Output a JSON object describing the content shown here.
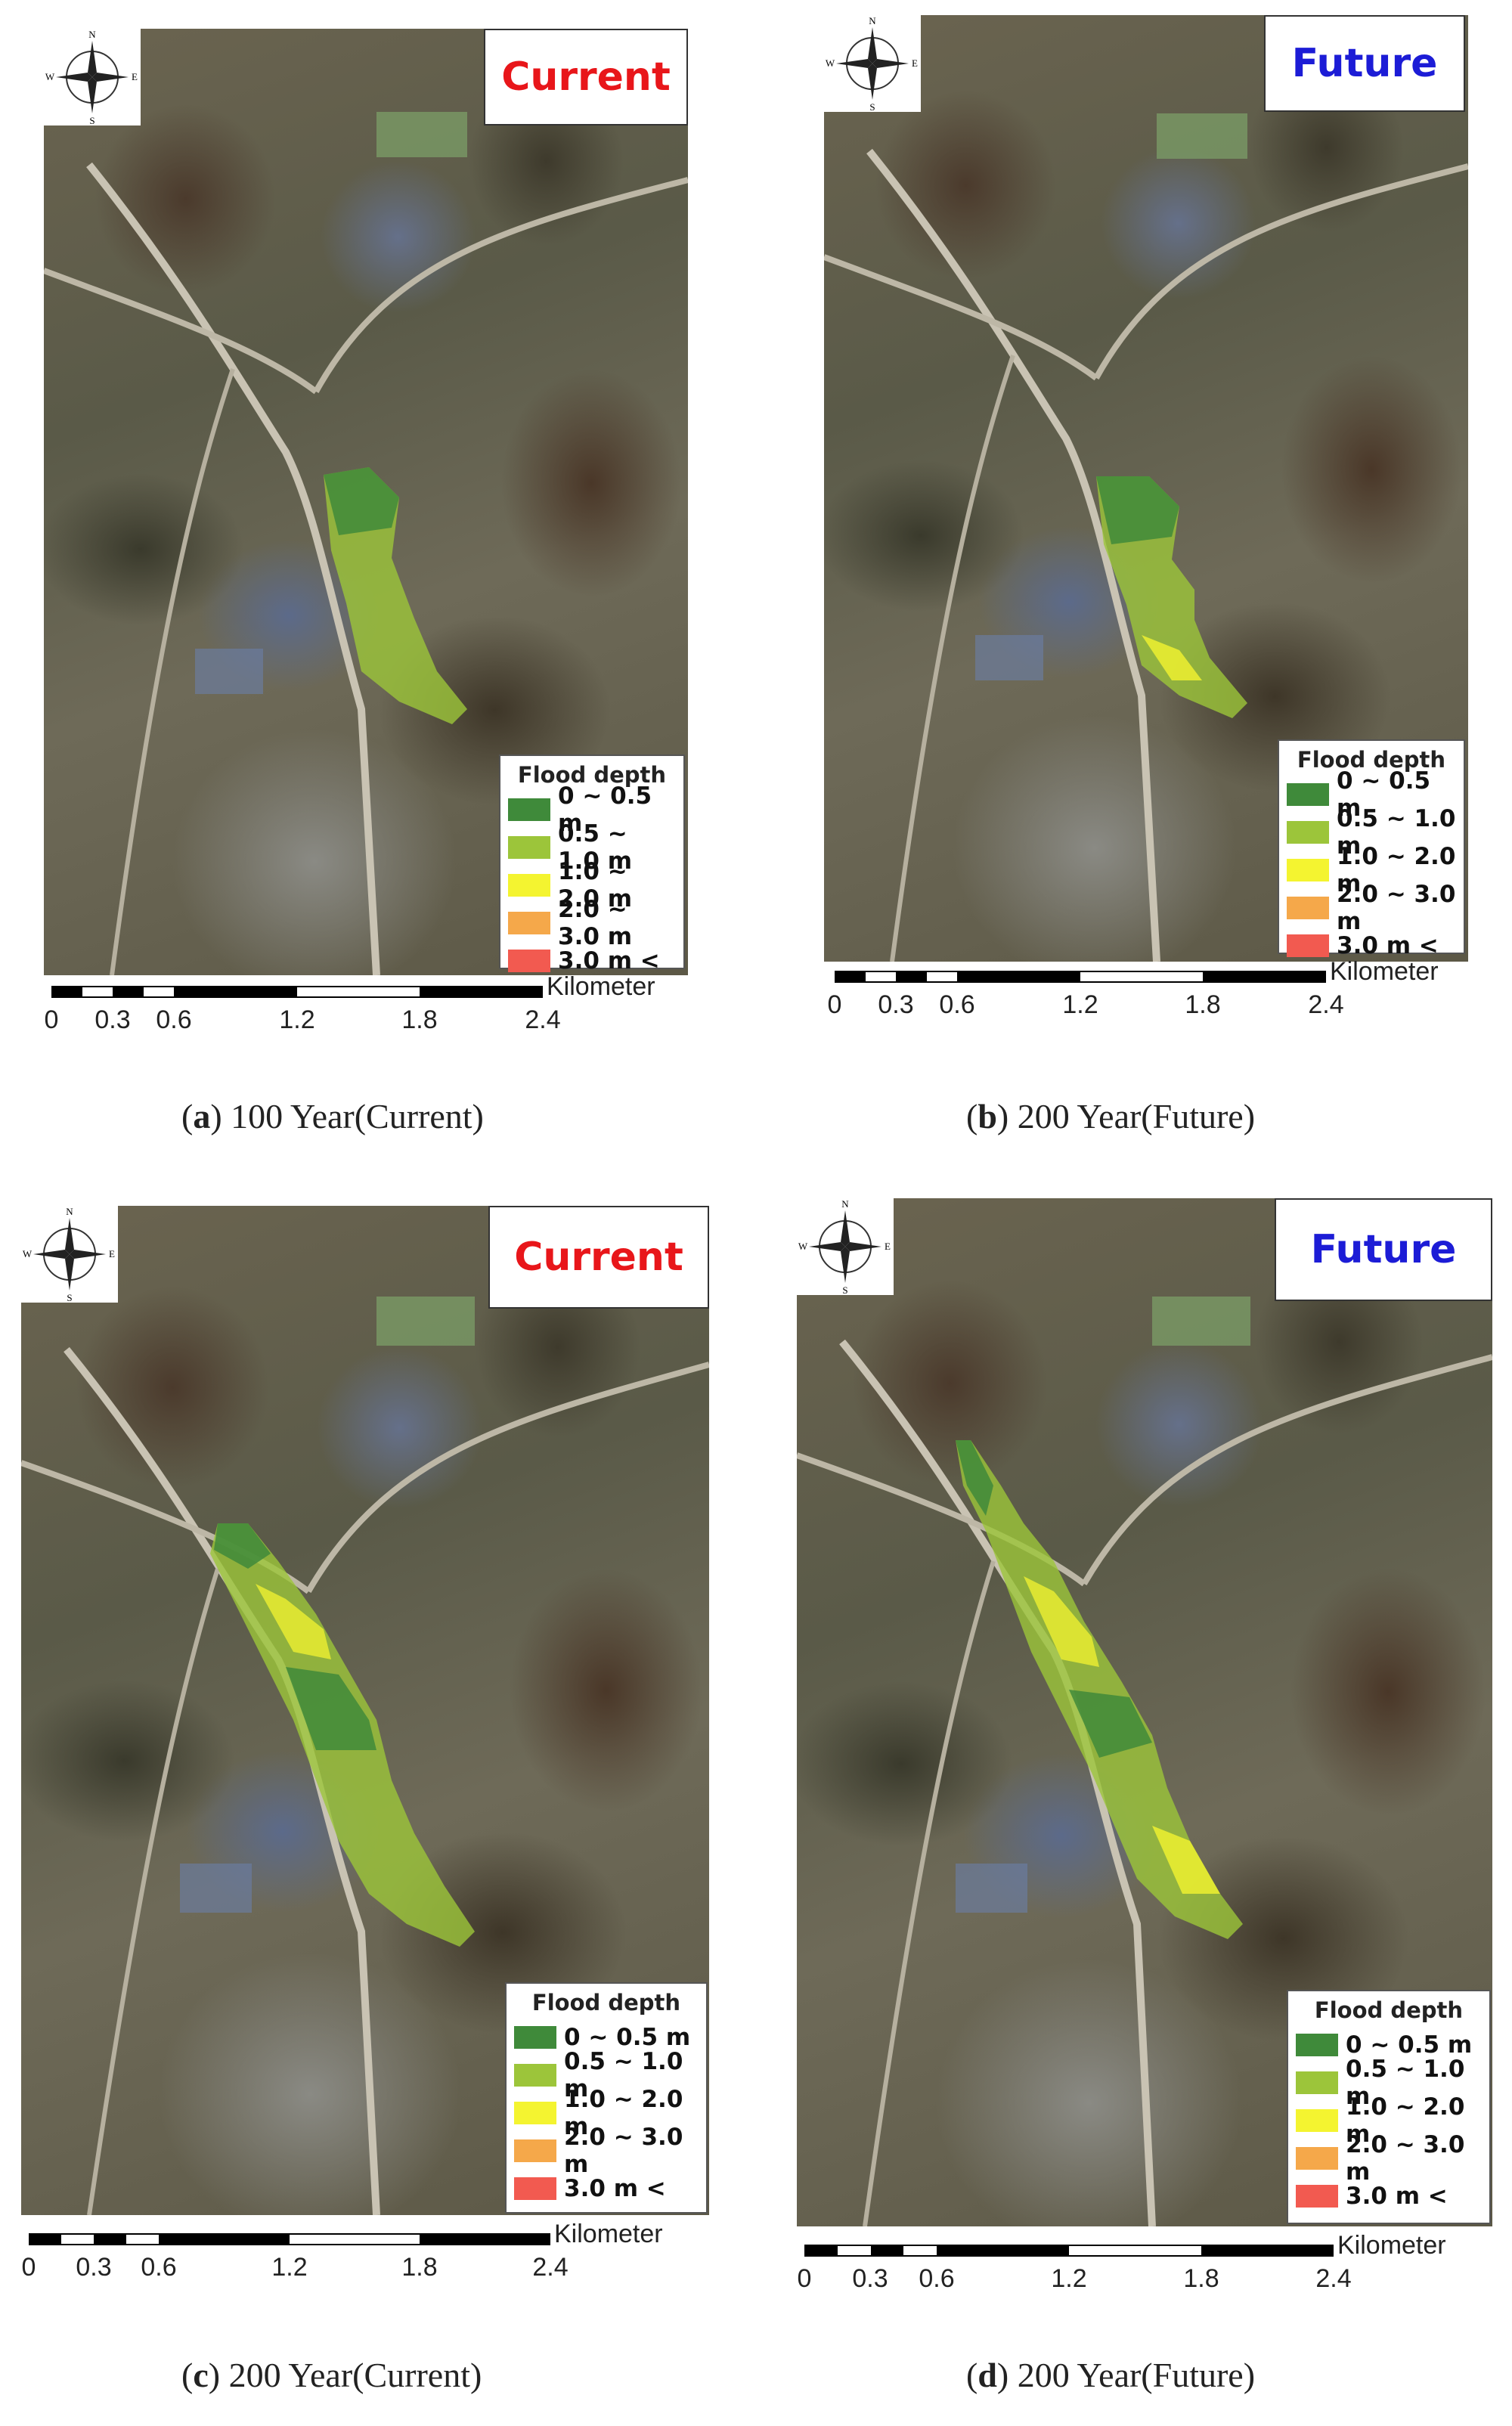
{
  "legend": {
    "title": "Flood  depth",
    "classes": [
      {
        "label": "0 ~ 0.5 m",
        "color": "#3f8a3a"
      },
      {
        "label": "0.5 ~ 1.0 m",
        "color": "#9cc53a"
      },
      {
        "label": "1.0 ~ 2.0 m",
        "color": "#f4f430"
      },
      {
        "label": "2.0 ~ 3.0 m",
        "color": "#f5a84a"
      },
      {
        "label": "3.0 m    <",
        "color": "#f25a50"
      }
    ]
  },
  "scale": {
    "unit": "Kilometer",
    "ticks": [
      "0",
      "0.3",
      "0.6",
      "1.2",
      "1.8",
      "2.4"
    ]
  },
  "compass": {
    "n": "N",
    "s": "S",
    "e": "E",
    "w": "W"
  },
  "panels": [
    {
      "scenario": "Current",
      "caption_letter": "a",
      "caption_text": " 100 Year(Current)",
      "scenario_color": "#e8161a"
    },
    {
      "scenario": "Future",
      "caption_letter": "b",
      "caption_text": " 200 Year(Future)",
      "scenario_color": "#1c1cd6"
    },
    {
      "scenario": "Current",
      "caption_letter": "c",
      "caption_text": " 200 Year(Current)",
      "scenario_color": "#e8161a"
    },
    {
      "scenario": "Future",
      "caption_letter": "d",
      "caption_text": " 200 Year(Future)",
      "scenario_color": "#1c1cd6"
    }
  ]
}
